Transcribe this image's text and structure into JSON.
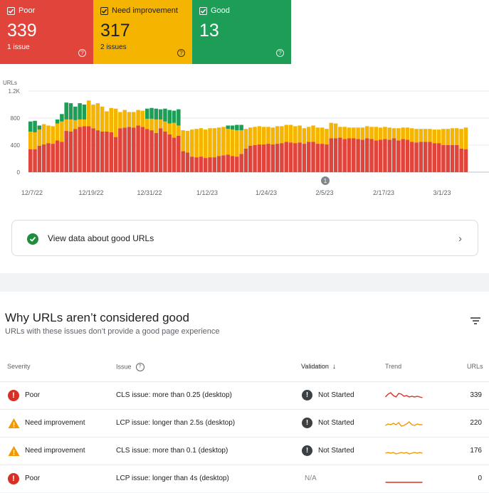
{
  "summary": {
    "poor": {
      "label": "Poor",
      "count": "339",
      "sub": "1 issue",
      "color": "#e0443a"
    },
    "need_improvement": {
      "label": "Need improvement",
      "count": "317",
      "sub": "2 issues",
      "color": "#f5b400"
    },
    "good": {
      "label": "Good",
      "count": "13",
      "sub": "",
      "color": "#1e9d57"
    }
  },
  "chart_data": {
    "type": "bar",
    "stacked": true,
    "ylabel": "URLs",
    "ylim": [
      0,
      1200
    ],
    "yticks": [
      "0",
      "400",
      "800",
      "1.2K"
    ],
    "xticks": [
      "12/7/22",
      "12/19/22",
      "12/31/22",
      "1/12/23",
      "1/24/23",
      "2/5/23",
      "2/17/23",
      "3/1/23"
    ],
    "annotation": "1",
    "series": [
      {
        "name": "Poor",
        "color": "#e0443a",
        "values": [
          340,
          340,
          390,
          410,
          430,
          420,
          470,
          450,
          610,
          600,
          640,
          670,
          680,
          680,
          650,
          620,
          600,
          600,
          590,
          520,
          650,
          660,
          670,
          660,
          690,
          670,
          640,
          620,
          580,
          650,
          600,
          560,
          510,
          540,
          310,
          290,
          230,
          220,
          230,
          210,
          220,
          220,
          240,
          250,
          260,
          240,
          230,
          270,
          350,
          390,
          400,
          410,
          410,
          420,
          410,
          420,
          430,
          450,
          440,
          430,
          440,
          420,
          450,
          450,
          420,
          420,
          410,
          500,
          500,
          510,
          490,
          500,
          500,
          490,
          480,
          500,
          490,
          470,
          480,
          490,
          480,
          500,
          470,
          490,
          480,
          450,
          440,
          450,
          450,
          450,
          430,
          430,
          400,
          400,
          400,
          400,
          350,
          340
        ]
      },
      {
        "name": "Need improvement",
        "color": "#f5b400",
        "values": [
          260,
          250,
          240,
          300,
          260,
          260,
          250,
          300,
          170,
          180,
          130,
          110,
          100,
          380,
          350,
          400,
          370,
          300,
          360,
          420,
          240,
          260,
          220,
          230,
          230,
          240,
          150,
          170,
          200,
          130,
          150,
          160,
          220,
          150,
          310,
          320,
          400,
          420,
          420,
          420,
          430,
          430,
          420,
          420,
          380,
          390,
          390,
          350,
          290,
          270,
          270,
          270,
          260,
          250,
          250,
          260,
          250,
          250,
          260,
          250,
          250,
          230,
          220,
          240,
          240,
          240,
          230,
          230,
          220,
          160,
          180,
          160,
          160,
          170,
          180,
          180,
          180,
          200,
          180,
          180,
          180,
          150,
          180,
          170,
          180,
          200,
          200,
          190,
          190,
          190,
          200,
          200,
          240,
          240,
          250,
          250,
          290,
          320
        ]
      },
      {
        "name": "Good",
        "color": "#1e9d57",
        "values": [
          150,
          170,
          60,
          0,
          0,
          0,
          60,
          110,
          250,
          240,
          200,
          240,
          220,
          0,
          0,
          0,
          0,
          0,
          0,
          0,
          0,
          0,
          0,
          0,
          0,
          0,
          150,
          160,
          160,
          150,
          190,
          200,
          180,
          240,
          0,
          0,
          0,
          0,
          0,
          0,
          0,
          0,
          0,
          0,
          50,
          60,
          80,
          80,
          0,
          0,
          0,
          0,
          0,
          0,
          0,
          0,
          0,
          0,
          0,
          0,
          0,
          0,
          0,
          0,
          0,
          0,
          0,
          0,
          0,
          0,
          0,
          0,
          0,
          0,
          0,
          0,
          0,
          0,
          0,
          0,
          0,
          0,
          0,
          0,
          0,
          0,
          0,
          0,
          0,
          0,
          0,
          0,
          0,
          0,
          0,
          0,
          0,
          0
        ]
      }
    ]
  },
  "view_good": {
    "label": "View data about good URLs"
  },
  "why": {
    "title": "Why URLs aren’t considered good",
    "subtitle": "URLs with these issues don’t provide a good page experience"
  },
  "table": {
    "headers": {
      "severity": "Severity",
      "issue": "Issue",
      "validation": "Validation",
      "trend": "Trend",
      "urls": "URLs"
    },
    "rows": [
      {
        "severity": "Poor",
        "issue": "CLS issue: more than 0.25 (desktop)",
        "validation": "Not Started",
        "urls": "339",
        "trend_color": "#d93025",
        "trend": [
          12,
          8,
          6,
          10,
          12,
          7,
          8,
          11,
          10,
          12,
          11,
          12,
          11,
          12,
          13
        ]
      },
      {
        "severity": "Need improvement",
        "issue": "LCP issue: longer than 2.5s (desktop)",
        "validation": "Not Started",
        "urls": "220",
        "trend_color": "#f29900",
        "trend": [
          13,
          11,
          12,
          10,
          12,
          9,
          14,
          13,
          11,
          8,
          12,
          13,
          11,
          12,
          12
        ]
      },
      {
        "severity": "Need improvement",
        "issue": "CLS issue: more than 0.1 (desktop)",
        "validation": "Not Started",
        "urls": "176",
        "trend_color": "#f29900",
        "trend": [
          13,
          12,
          13,
          12,
          14,
          13,
          12,
          13,
          12,
          14,
          13,
          12,
          13,
          12,
          13
        ]
      },
      {
        "severity": "Poor",
        "issue": "LCP issue: longer than 4s (desktop)",
        "validation": "N/A",
        "urls": "0",
        "trend_color": "#d93025",
        "trend": [
          15,
          15,
          15,
          15,
          15,
          15,
          15,
          15,
          15,
          15,
          15,
          15,
          15,
          15,
          15
        ]
      }
    ]
  }
}
